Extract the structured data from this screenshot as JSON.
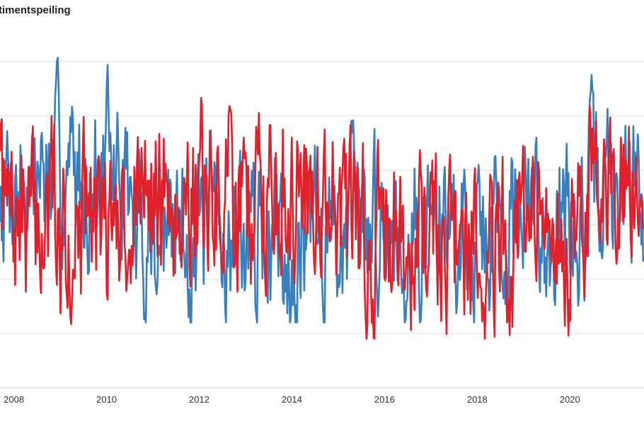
{
  "chart_title": "timentspeiling",
  "colors": {
    "series_a": "#3a7fbd",
    "series_b": "#e0202b",
    "grid": "#dddddd",
    "axis": "#cccccc"
  },
  "chart_data": {
    "type": "line",
    "title": "timentspeiling",
    "xlabel": "",
    "ylabel": "",
    "xlim": [
      2007.7,
      2021.6
    ],
    "ylim": [
      0,
      7
    ],
    "x_ticks": [
      "2008",
      "2010",
      "2012",
      "2014",
      "2016",
      "2018",
      "2020"
    ],
    "grid": true,
    "legend": "none",
    "series": [
      {
        "color": "#3a7fbd",
        "start_year": 2007.7,
        "step_years": 0.0192,
        "values": []
      },
      {
        "color": "#e0202b",
        "start_year": 2007.7,
        "step_years": 0.0192,
        "values": []
      }
    ]
  }
}
